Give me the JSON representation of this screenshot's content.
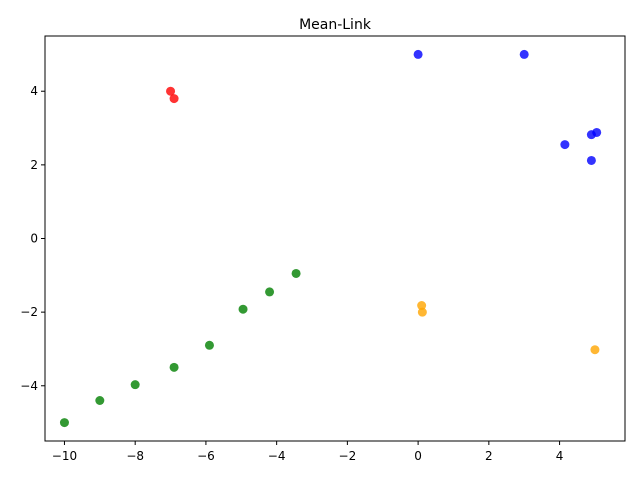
{
  "chart_data": {
    "type": "scatter",
    "title": "Mean-Link",
    "xlabel": "",
    "ylabel": "",
    "xlim": [
      -10.55,
      5.85
    ],
    "ylim": [
      -5.5,
      5.5
    ],
    "x_ticks": [
      -10,
      -8,
      -6,
      -4,
      -2,
      0,
      2,
      4
    ],
    "y_ticks": [
      -4,
      -2,
      0,
      2,
      4
    ],
    "x_tick_labels": [
      "−10",
      "−8",
      "−6",
      "−4",
      "−2",
      "0",
      "2",
      "4"
    ],
    "y_tick_labels": [
      "−4",
      "−2",
      "0",
      "2",
      "4"
    ],
    "grid": false,
    "legend": "none",
    "series": [
      {
        "color": "#0000ff",
        "points": [
          [
            0.0,
            5.0
          ],
          [
            3.0,
            5.0
          ],
          [
            4.15,
            2.55
          ],
          [
            4.9,
            2.82
          ],
          [
            5.05,
            2.88
          ],
          [
            4.9,
            2.12
          ]
        ]
      },
      {
        "color": "#ff0000",
        "points": [
          [
            -7.0,
            4.0
          ],
          [
            -6.9,
            3.8
          ]
        ]
      },
      {
        "color": "#008000",
        "points": [
          [
            -10.0,
            -5.0
          ],
          [
            -9.0,
            -4.4
          ],
          [
            -8.0,
            -3.97
          ],
          [
            -6.9,
            -3.5
          ],
          [
            -5.9,
            -2.9
          ],
          [
            -4.95,
            -1.92
          ],
          [
            -4.2,
            -1.45
          ],
          [
            -3.45,
            -0.95
          ]
        ]
      },
      {
        "color": "#ffa500",
        "points": [
          [
            0.1,
            -1.82
          ],
          [
            0.12,
            -2.0
          ],
          [
            5.0,
            -3.02
          ]
        ]
      }
    ]
  }
}
